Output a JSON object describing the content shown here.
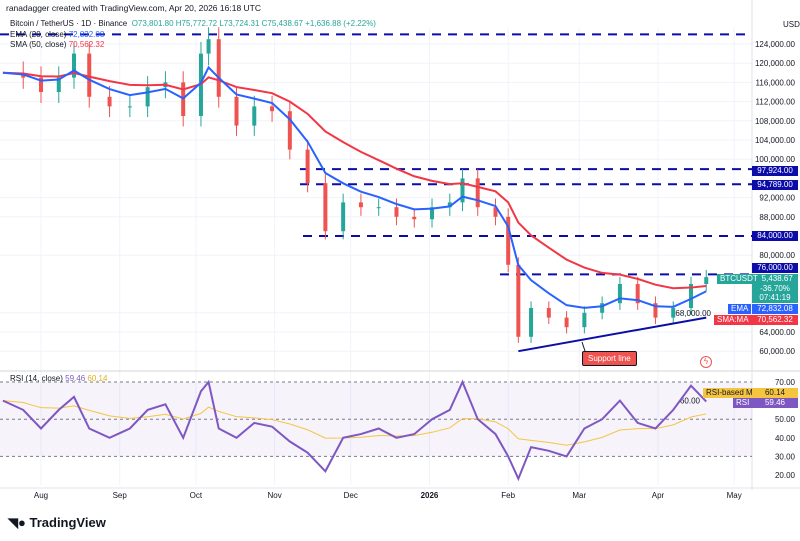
{
  "header": {
    "credit": "ranadagger created with TradingView.com, Apr 20, 2026 16:18 UTC",
    "symbol": "Bitcoin / TetherUS · 1D · Binance",
    "open": "O73,801.80",
    "high": "H75,772.72",
    "low": "L73,724.31",
    "close": "C75,438.67",
    "change": "+1,636.88 (+2.22%)",
    "ema_label": "EMA (20, close)",
    "ema_value": "72,832.08",
    "sma_label": "SMA (50, close)",
    "sma_value": "70,562.32",
    "rsi_label": "RSI (14, close)",
    "rsi_value": "59.46",
    "rsi_ma_value": "60.14"
  },
  "currency": "USDT",
  "logo": "TradingView",
  "colors": {
    "up": "#26a69a",
    "down": "#ef5350",
    "ema": "#2962ff",
    "sma": "#f23645",
    "level": "#0c0ca8",
    "rsi": "#7e57c2",
    "rsi_ma": "#f5c542"
  },
  "badges": {
    "last_symbol": "BTCUSDT",
    "last_price": "75,438.67",
    "last_pct": "-36.70%",
    "countdown": "07:41:19",
    "ema": "EMA",
    "ema_price": "72,832.08",
    "sma": "SMA:MA",
    "sma_price": "70,562.32",
    "level_76000": "76,000.00",
    "level_84000": "84,000.00",
    "level_94789": "94,789.00",
    "level_97924": "97,924.00",
    "rsi_ma": "RSI-based MA",
    "rsi_ma_val": "60.14",
    "rsi": "RSI",
    "rsi_val": "59.46"
  },
  "annotation": "Support line",
  "chart_data": {
    "type": "candlestick",
    "dates": [
      "2025-07-17",
      "2025-07-25",
      "2025-08-01",
      "2025-08-08",
      "2025-08-14",
      "2025-08-20",
      "2025-08-28",
      "2025-09-05",
      "2025-09-12",
      "2025-09-19",
      "2025-09-26",
      "2025-10-03",
      "2025-10-06",
      "2025-10-10",
      "2025-10-17",
      "2025-10-24",
      "2025-10-31",
      "2025-11-07",
      "2025-11-14",
      "2025-11-21",
      "2025-11-28",
      "2025-12-05",
      "2025-12-12",
      "2025-12-19",
      "2025-12-26",
      "2026-01-02",
      "2026-01-09",
      "2026-01-14",
      "2026-01-20",
      "2026-01-27",
      "2026-02-01",
      "2026-02-05",
      "2026-02-10",
      "2026-02-17",
      "2026-02-24",
      "2026-03-03",
      "2026-03-10",
      "2026-03-17",
      "2026-03-24",
      "2026-03-31",
      "2026-04-07",
      "2026-04-14",
      "2026-04-20"
    ],
    "close": [
      118000,
      117000,
      114000,
      117000,
      122000,
      113000,
      111000,
      111000,
      115000,
      116000,
      109000,
      122000,
      125000,
      113000,
      107000,
      111000,
      110000,
      102000,
      95000,
      85000,
      91000,
      90000,
      90000,
      88000,
      87500,
      90000,
      91000,
      96000,
      90000,
      88000,
      78000,
      63000,
      69000,
      67000,
      65000,
      68000,
      70000,
      74000,
      70000,
      67000,
      69000,
      74000,
      75438.67
    ],
    "rsi": [
      60,
      55,
      45,
      55,
      62,
      45,
      40,
      45,
      55,
      58,
      40,
      65,
      70,
      45,
      40,
      48,
      46,
      38,
      32,
      22,
      40,
      42,
      45,
      40,
      42,
      50,
      55,
      70,
      50,
      42,
      30,
      18,
      35,
      33,
      30,
      45,
      50,
      60,
      48,
      45,
      55,
      68,
      59.46
    ],
    "levels": [
      126000,
      97924,
      94789,
      84000,
      76000
    ],
    "support_line": [
      [
        "2026-02-05",
        60000
      ],
      [
        "2026-04-20",
        67000
      ]
    ],
    "price_ticks": [
      124000,
      120000,
      116000,
      112000,
      108000,
      104000,
      100000,
      92000,
      88000,
      80000,
      68000,
      64000,
      60000
    ],
    "rsi_ticks": [
      70,
      60,
      50,
      40,
      30,
      20
    ],
    "x_ticks": [
      "Aug",
      "Sep",
      "Oct",
      "Nov",
      "Dec",
      "2026",
      "Feb",
      "Mar",
      "Apr",
      "May"
    ],
    "ema_period": 20,
    "sma_period": 50
  }
}
